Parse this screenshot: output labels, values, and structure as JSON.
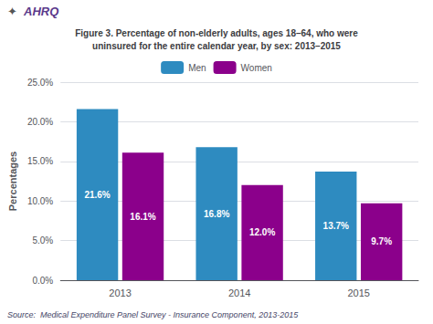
{
  "chart_data": {
    "type": "bar",
    "title": "Figure 3. Percentage of non-elderly adults, ages 18–64, who were\nuninsured for the entire calendar year, by sex: 2013–2015",
    "annotations": [
      {
        "text": "✦"
      },
      {
        "text": "AHRQ",
        "color": "#5B3A8B"
      }
    ],
    "source": "Source:  Medical Expenditure Panel Survey - Insurance Component, 2013-2015",
    "categories": [
      "2013",
      "2014",
      "2015"
    ],
    "series": [
      {
        "name": "Men",
        "color": "#2E8BC0",
        "values": [
          21.6,
          16.8,
          13.7
        ],
        "value_labels": [
          "21.6%",
          "16.8%",
          "13.7%"
        ]
      },
      {
        "name": "Women",
        "color": "#8B008B",
        "values": [
          16.1,
          12.0,
          9.7
        ],
        "value_labels": [
          "16.1%",
          "12.0%",
          "9.7%"
        ]
      }
    ],
    "ylabel": "Percentages",
    "ylim": [
      0,
      25
    ],
    "yticks": [
      {
        "value": 0,
        "label": "0.0%"
      },
      {
        "value": 5,
        "label": "5.0%"
      },
      {
        "value": 10,
        "label": "10.0%"
      },
      {
        "value": 15,
        "label": "15.0%"
      },
      {
        "value": 20,
        "label": "20.0%"
      },
      {
        "value": 25,
        "label": "25.0%"
      }
    ],
    "grid": true,
    "legend": "top",
    "data_labels": true
  }
}
